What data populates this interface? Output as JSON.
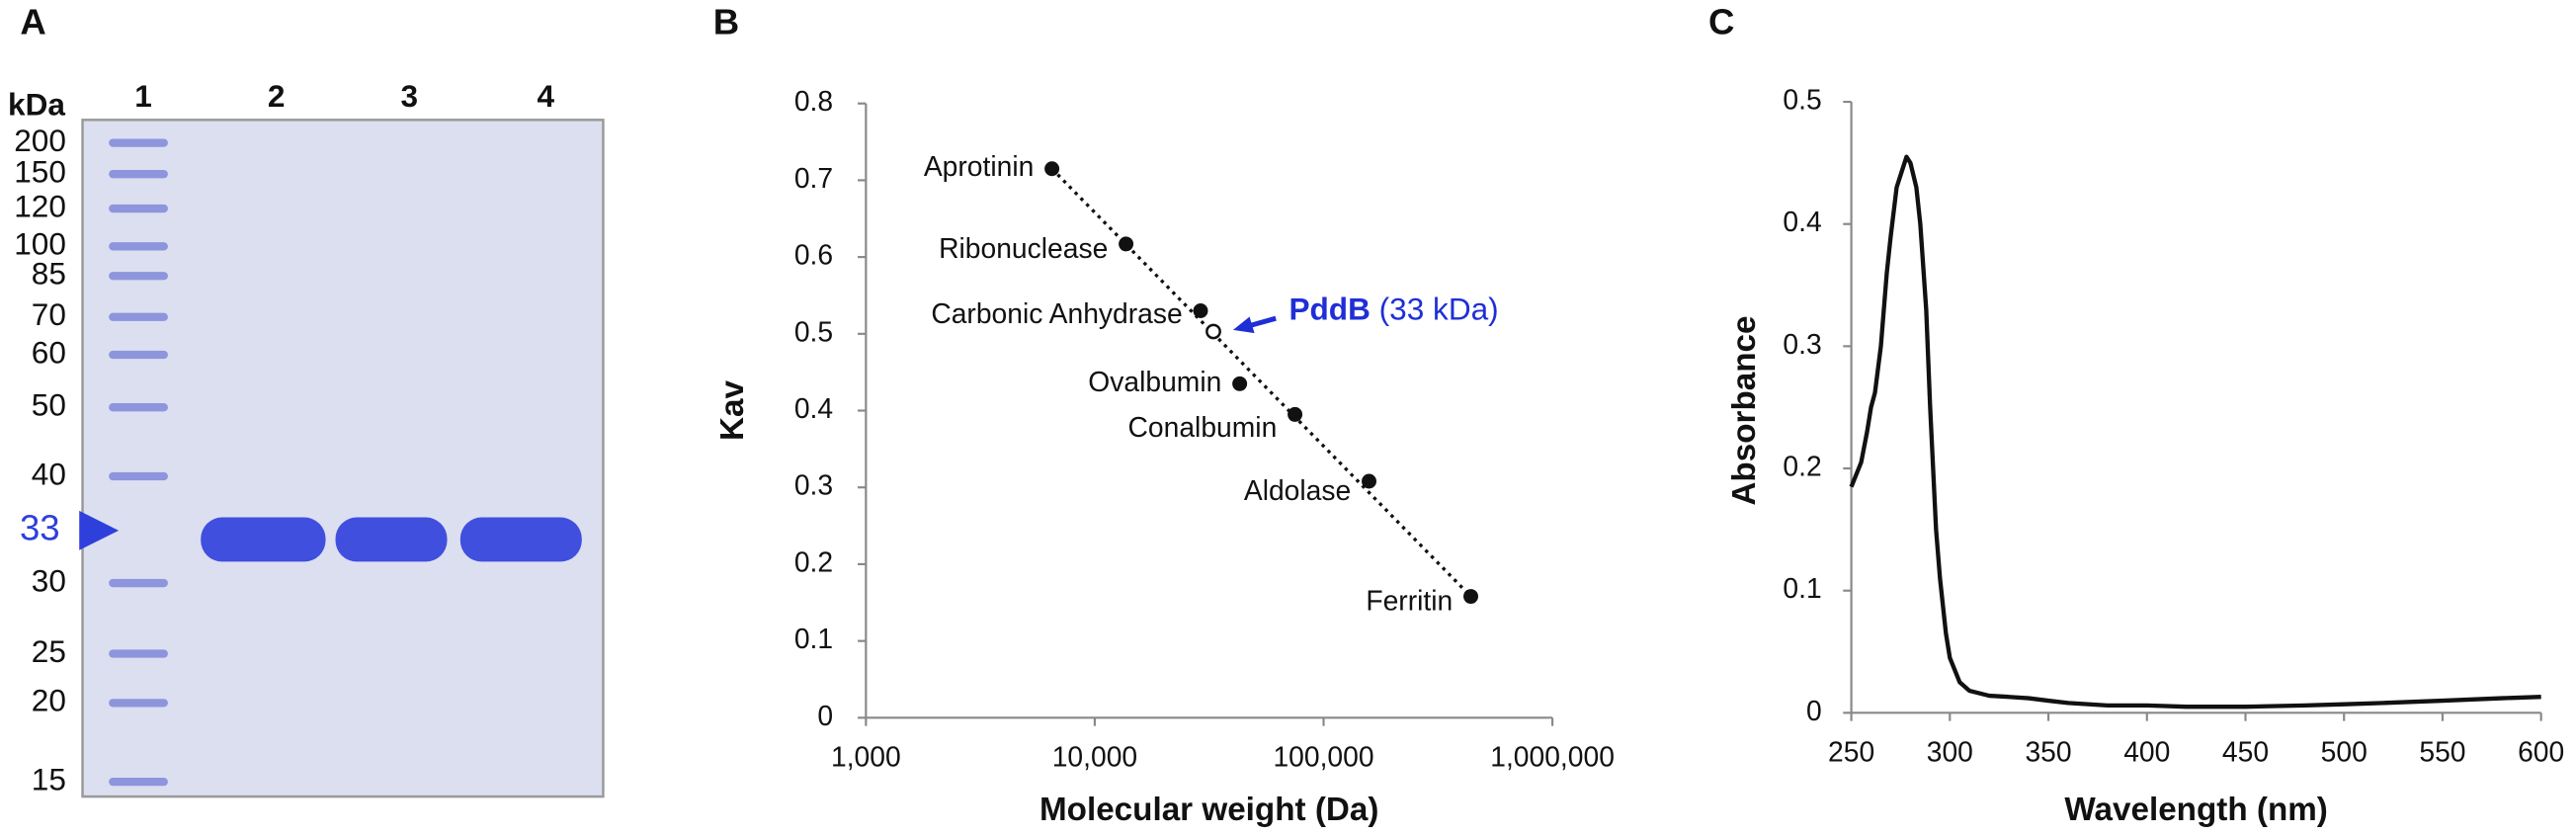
{
  "gel": {
    "panel": "A",
    "unit": "kDa",
    "lanes": [
      "1",
      "2",
      "3",
      "4"
    ],
    "markers": [
      200,
      150,
      120,
      100,
      85,
      70,
      60,
      50,
      40,
      30,
      25,
      20,
      15
    ],
    "band_kda": 33,
    "band_color": "#2f3fdc"
  },
  "chart_data": [
    {
      "panel": "B",
      "type": "scatter",
      "x_label": "Molecular weight (Da)",
      "y_label": "Kav",
      "x_log": true,
      "xlim": [
        1000,
        1000000
      ],
      "xticks": [
        {
          "value": 1000,
          "label": "1,000"
        },
        {
          "value": 10000,
          "label": "10,000"
        },
        {
          "value": 100000,
          "label": "100,000"
        },
        {
          "value": 1000000,
          "label": "1,000,000"
        }
      ],
      "ylim": [
        0,
        0.8
      ],
      "yticks": [
        0,
        0.1,
        0.2,
        0.3,
        0.4,
        0.5,
        0.6,
        0.7,
        0.8
      ],
      "labels": [
        "Aprotinin",
        "Ribonuclease",
        "Carbonic Anhydrase",
        "Ovalbumin",
        "Conalbumin",
        "Aldolase",
        "Ferritin"
      ],
      "x": [
        6500,
        13700,
        29000,
        43000,
        75000,
        158000,
        440000
      ],
      "y": [
        0.715,
        0.617,
        0.53,
        0.435,
        0.395,
        0.308,
        0.158
      ],
      "color": "#111111",
      "trendline": true,
      "highlight": {
        "name": "PddB",
        "note": "(33 kDa)",
        "x": 33000,
        "y": 0.503,
        "color": "#1f2fd6"
      }
    },
    {
      "panel": "C",
      "type": "line",
      "x_label": "Wavelength (nm)",
      "y_label": "Absorbance",
      "xlim": [
        250,
        600
      ],
      "xticks": [
        250,
        300,
        350,
        400,
        450,
        500,
        550,
        600
      ],
      "ylim": [
        0,
        0.5
      ],
      "yticks": [
        0,
        0.1,
        0.2,
        0.3,
        0.4,
        0.5
      ],
      "x": [
        250,
        255,
        258,
        260,
        262,
        265,
        268,
        270,
        273,
        275,
        278,
        280,
        283,
        285,
        288,
        290,
        293,
        295,
        298,
        300,
        305,
        310,
        320,
        330,
        340,
        350,
        360,
        380,
        400,
        420,
        450,
        480,
        500,
        520,
        550,
        580,
        600
      ],
      "values": [
        0.185,
        0.205,
        0.23,
        0.25,
        0.262,
        0.3,
        0.36,
        0.39,
        0.43,
        0.44,
        0.455,
        0.45,
        0.43,
        0.4,
        0.33,
        0.25,
        0.15,
        0.11,
        0.065,
        0.045,
        0.025,
        0.018,
        0.014,
        0.013,
        0.012,
        0.01,
        0.008,
        0.006,
        0.006,
        0.005,
        0.005,
        0.006,
        0.007,
        0.008,
        0.01,
        0.012,
        0.013
      ],
      "color": "#111111"
    }
  ]
}
